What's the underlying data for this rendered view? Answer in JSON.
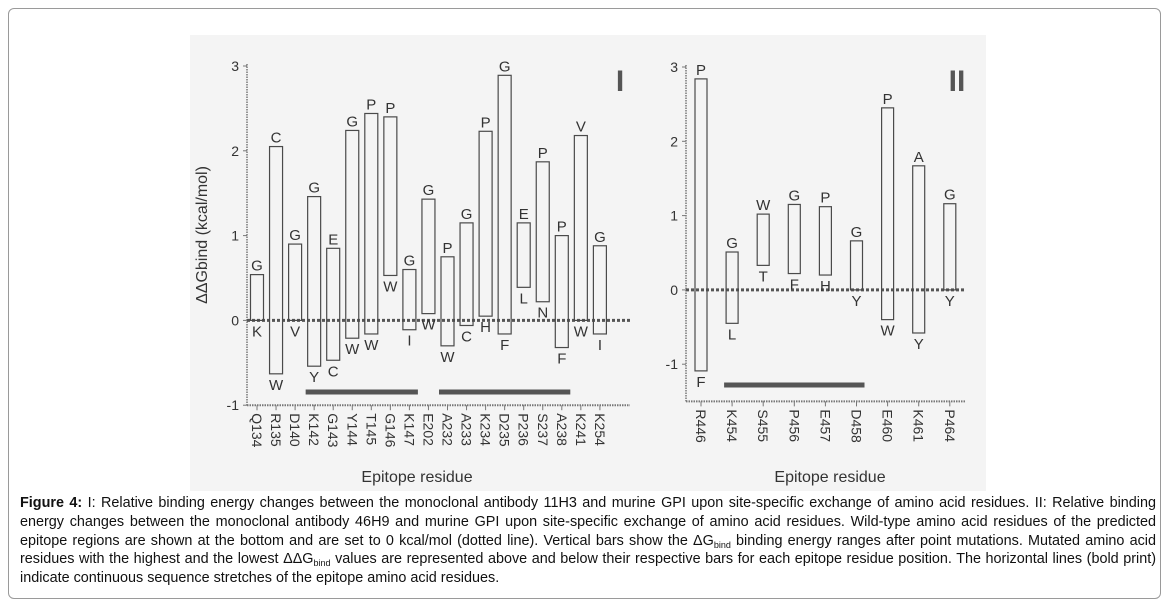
{
  "chart_data": [
    {
      "type": "bar",
      "panel_label": "I",
      "ylabel": "ΔΔGbind (kcal/mol)",
      "xlabel": "Epitope residue",
      "ylim": [
        -1,
        3
      ],
      "yticks": [
        "3",
        "2",
        "1",
        "0",
        "-1"
      ],
      "yticks_values": [
        3,
        2,
        1,
        0,
        -1
      ],
      "baseline": 0,
      "categories": [
        "Q134",
        "R135",
        "D140",
        "K142",
        "G143",
        "Y144",
        "T145",
        "G146",
        "K147",
        "E202",
        "A232",
        "A233",
        "K234",
        "D235",
        "P236",
        "S237",
        "A238",
        "K241",
        "K254"
      ],
      "high": [
        0.54,
        2.05,
        0.9,
        1.46,
        0.85,
        2.24,
        2.44,
        2.4,
        0.6,
        1.43,
        0.75,
        1.15,
        2.23,
        2.89,
        1.15,
        1.87,
        1.0,
        2.18,
        0.88
      ],
      "low": [
        0,
        -0.63,
        0,
        -0.54,
        -0.47,
        -0.21,
        -0.16,
        0.53,
        -0.11,
        0.08,
        -0.3,
        -0.06,
        0.05,
        -0.16,
        0.39,
        0.22,
        -0.32,
        0,
        -0.16
      ],
      "high_labels": [
        "G",
        "C",
        "G",
        "G",
        "E",
        "G",
        "P",
        "P",
        "G",
        "G",
        "P",
        "G",
        "P",
        "G",
        "E",
        "P",
        "P",
        "V",
        "G"
      ],
      "low_labels": [
        "K",
        "W",
        "V",
        "Y",
        "C",
        "W",
        "W",
        "W",
        "I",
        "W",
        "W",
        "C",
        "H",
        "F",
        "L",
        "N",
        "F",
        "W",
        "I"
      ],
      "epitope_stretches": [
        [
          "K142",
          "K147"
        ],
        [
          "A232",
          "A238"
        ]
      ]
    },
    {
      "type": "bar",
      "panel_label": "II",
      "xlabel": "Epitope residue",
      "ylim": [
        -1.5,
        3
      ],
      "yticks": [
        "3",
        "2",
        "1",
        "0",
        "-1"
      ],
      "yticks_values": [
        3,
        2,
        1,
        0,
        -1
      ],
      "baseline": 0,
      "categories": [
        "R446",
        "K454",
        "S455",
        "P456",
        "E457",
        "D458",
        "E460",
        "K461",
        "P464"
      ],
      "high": [
        2.84,
        0.51,
        1.02,
        1.15,
        1.12,
        0.66,
        2.45,
        1.67,
        1.16
      ],
      "low": [
        -1.09,
        -0.45,
        0.33,
        0.22,
        0.2,
        0,
        -0.4,
        -0.58,
        0
      ],
      "high_labels": [
        "P",
        "G",
        "W",
        "G",
        "P",
        "G",
        "P",
        "A",
        "G"
      ],
      "low_labels": [
        "F",
        "L",
        "T",
        "F",
        "H",
        "Y",
        "W",
        "Y",
        "Y"
      ],
      "epitope_stretches": [
        [
          "K454",
          "D458"
        ]
      ]
    }
  ],
  "colors": {
    "bar_outline": "#4a4a4a",
    "baseline": "#555555",
    "epitope_line": "#555555",
    "figure_bg": "#f4f4f4"
  },
  "caption": {
    "label": "Figure 4:",
    "text1": " I: Relative binding energy changes between the monoclonal antibody 11H3 and murine GPI upon site-specific exchange of amino acid residues. II: Relative binding energy changes between the monoclonal antibody 46H9 and murine GPI upon site-specific exchange of amino acid residues. Wild-type amino acid residues of the predicted epitope regions are shown at the bottom and are set to 0 kcal/mol (dotted line). Vertical bars show the ΔG",
    "sub1": "bind",
    "text2": " binding energy ranges after point mutations. Mutated amino acid residues with the highest and the lowest ΔΔG",
    "sub2": "bind",
    "text3": " values are represented above and below their respective bars for each epitope residue position. The horizontal lines (bold print) indicate continuous sequence stretches of the epitope amino acid residues."
  }
}
